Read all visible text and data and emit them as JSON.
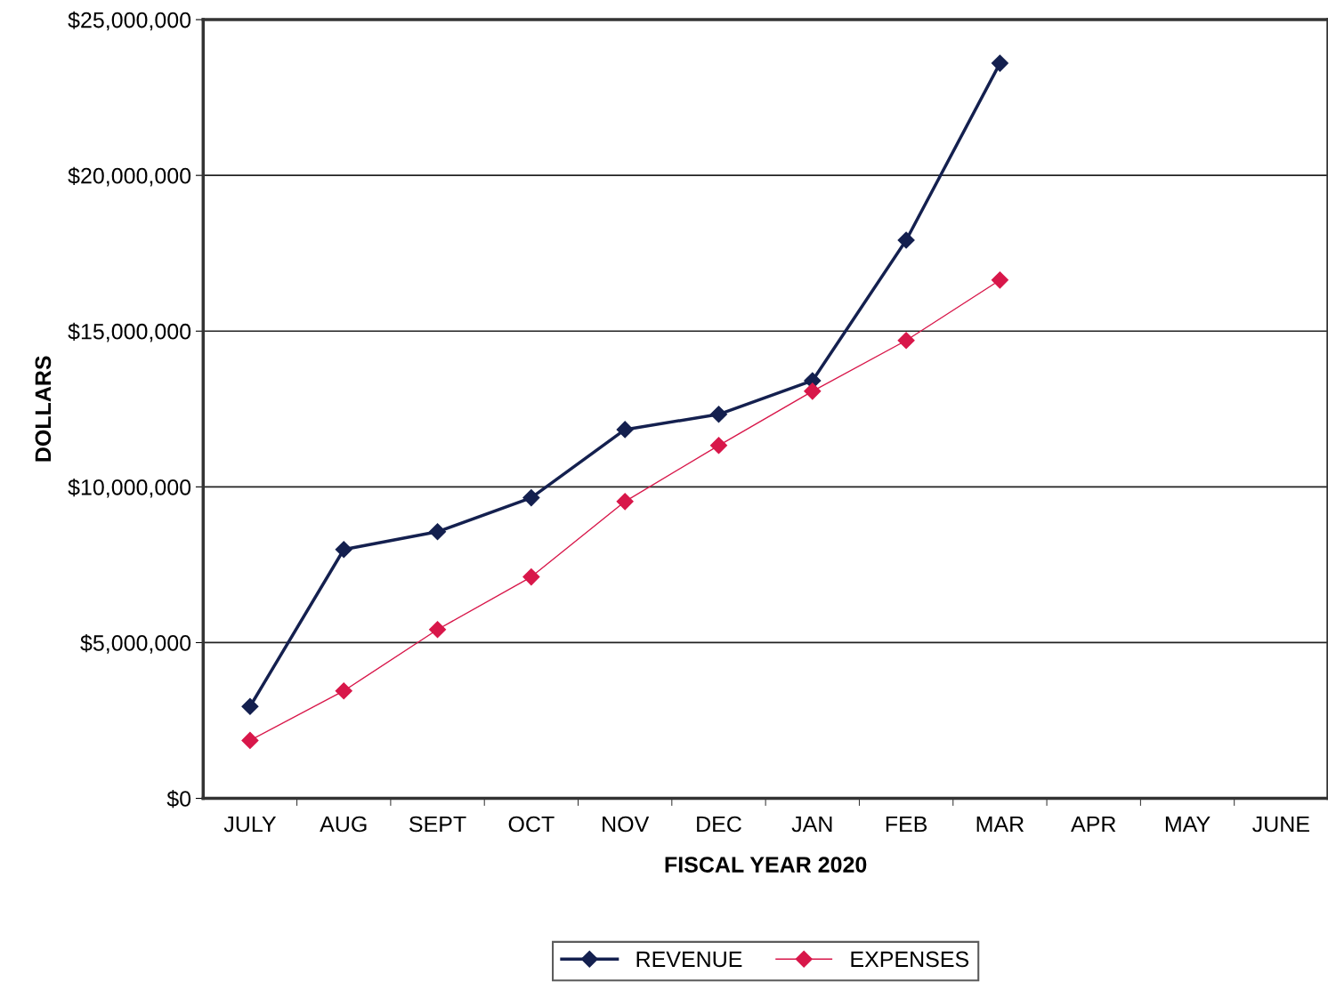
{
  "chart_data": {
    "type": "line",
    "xlabel": "FISCAL YEAR 2020",
    "ylabel": "DOLLARS",
    "categories": [
      "JULY",
      "AUG",
      "SEPT",
      "OCT",
      "NOV",
      "DEC",
      "JAN",
      "FEB",
      "MAR",
      "APR",
      "MAY",
      "JUNE"
    ],
    "series": [
      {
        "name": "REVENUE",
        "color": "#14204f",
        "values": [
          2950000,
          7990000,
          8560000,
          9650000,
          11840000,
          12330000,
          13410000,
          17920000,
          23600000,
          null,
          null,
          null
        ]
      },
      {
        "name": "EXPENSES",
        "color": "#d8174a",
        "values": [
          1860000,
          3450000,
          5420000,
          7110000,
          9530000,
          11330000,
          13070000,
          14700000,
          16640000,
          null,
          null,
          null
        ]
      }
    ],
    "ylim": [
      0,
      25000000
    ],
    "yticks": [
      {
        "value": 0,
        "label": "$0"
      },
      {
        "value": 5000000,
        "label": "$5,000,000"
      },
      {
        "value": 10000000,
        "label": "$10,000,000"
      },
      {
        "value": 15000000,
        "label": "$15,000,000"
      },
      {
        "value": 20000000,
        "label": "$20,000,000"
      },
      {
        "value": 25000000,
        "label": "$25,000,000"
      }
    ],
    "grid": "y",
    "legend": "bottom",
    "marker": "diamond",
    "line_style": "solid"
  }
}
